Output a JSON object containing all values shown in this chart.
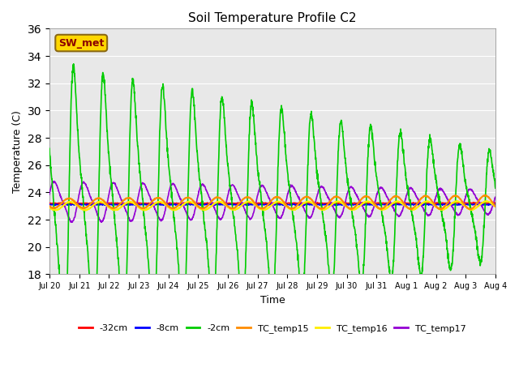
{
  "title": "Soil Temperature Profile C2",
  "xlabel": "Time",
  "ylabel": "Temperature (C)",
  "ylim": [
    18,
    36
  ],
  "yticks": [
    18,
    20,
    22,
    24,
    26,
    28,
    30,
    32,
    34,
    36
  ],
  "annotation_text": "SW_met",
  "annotation_color": "#8B0000",
  "annotation_bg": "#FFD700",
  "annotation_border": "#8B6914",
  "bg_color": "#E8E8E8",
  "plot_bg": "#DCDCDC",
  "legend_entries": [
    "-32cm",
    "-8cm",
    "-2cm",
    "TC_temp15",
    "TC_temp16",
    "TC_temp17"
  ],
  "legend_colors": [
    "#FF0000",
    "#0000FF",
    "#00CC00",
    "#FF8C00",
    "#FFEE00",
    "#9400D3"
  ],
  "line_colors": {
    "depth_32": "#FF0000",
    "depth_8": "#0000FF",
    "depth_2": "#00CC00",
    "tc15": "#FF8C00",
    "tc16": "#FFEE00",
    "tc17": "#9400D3"
  },
  "num_points": 2000,
  "days": 15
}
